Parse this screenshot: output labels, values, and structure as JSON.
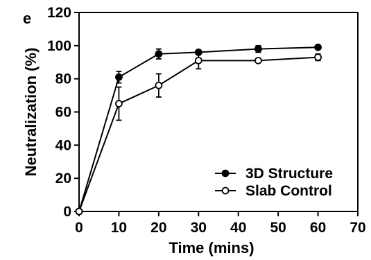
{
  "panel_label": "e",
  "chart_data": {
    "type": "line",
    "xlabel": "Time (mins)",
    "ylabel": "Neutralization (%)",
    "xlim": [
      0,
      70
    ],
    "ylim": [
      0,
      120
    ],
    "xticks": [
      0,
      10,
      20,
      30,
      40,
      50,
      60,
      70
    ],
    "yticks": [
      0,
      20,
      40,
      60,
      80,
      100,
      120
    ],
    "grid": false,
    "legend_position": "bottom-right",
    "series": [
      {
        "name": "3D Structure",
        "marker": "filled-circle",
        "color": "#000000",
        "x": [
          0,
          10,
          20,
          30,
          45,
          60
        ],
        "y": [
          0,
          81,
          95,
          96,
          98,
          99
        ],
        "err": [
          0,
          3.5,
          3,
          1,
          2,
          1
        ]
      },
      {
        "name": "Slab Control",
        "marker": "open-circle",
        "color": "#000000",
        "x": [
          0,
          10,
          20,
          30,
          45,
          60
        ],
        "y": [
          0,
          65,
          76,
          91,
          91,
          93
        ],
        "err": [
          0,
          10,
          7,
          5,
          1,
          2
        ]
      }
    ]
  }
}
